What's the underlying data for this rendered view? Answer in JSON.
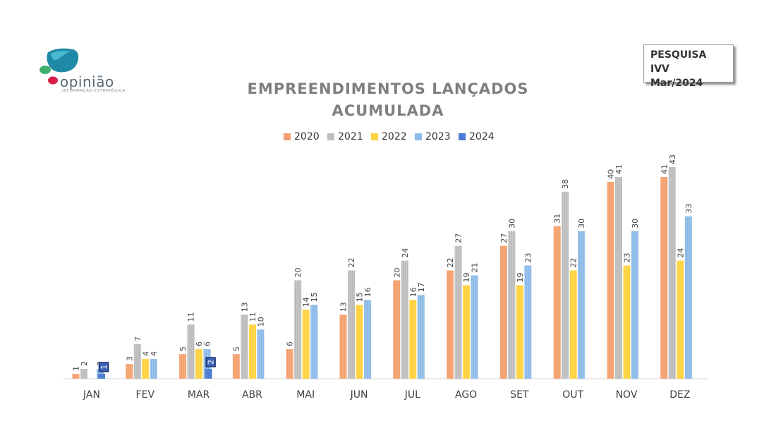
{
  "brand": {
    "name": "opinião",
    "tagline": "INFORMAÇÃO ESTRATÉGICA"
  },
  "badge": {
    "line1": "PESQUISA IVV",
    "line2": "Mar/2024"
  },
  "colors": {
    "2020": "#F4A16F",
    "2021": "#BDBDBD",
    "2022": "#FFD23F",
    "2023": "#8DBBE8",
    "2024": "#4A7BD0"
  },
  "chart_data": {
    "type": "bar",
    "title": "EMPREENDIMENTOS LANÇADOS\nACUMULADA",
    "title_lines": [
      "EMPREENDIMENTOS LANÇADOS",
      "ACUMULADA"
    ],
    "categories": [
      "JAN",
      "FEV",
      "MAR",
      "ABR",
      "MAI",
      "JUN",
      "JUL",
      "AGO",
      "SET",
      "OUT",
      "NOV",
      "DEZ"
    ],
    "series": [
      {
        "name": "2020",
        "values": [
          1,
          3,
          5,
          5,
          6,
          13,
          20,
          22,
          27,
          31,
          40,
          41
        ]
      },
      {
        "name": "2021",
        "values": [
          2,
          7,
          11,
          13,
          20,
          22,
          24,
          27,
          30,
          38,
          41,
          43
        ]
      },
      {
        "name": "2022",
        "values": [
          null,
          4,
          6,
          11,
          14,
          15,
          16,
          19,
          19,
          22,
          23,
          24
        ]
      },
      {
        "name": "2023",
        "values": [
          2,
          4,
          6,
          10,
          15,
          16,
          17,
          21,
          23,
          30,
          30,
          33
        ]
      },
      {
        "name": "2024",
        "values": [
          1,
          null,
          2,
          null,
          null,
          null,
          null,
          null,
          null,
          null,
          null,
          null
        ]
      }
    ],
    "ylim": [
      0,
      43
    ],
    "legend_position": "top",
    "grid": false,
    "xlabel": "",
    "ylabel": ""
  }
}
